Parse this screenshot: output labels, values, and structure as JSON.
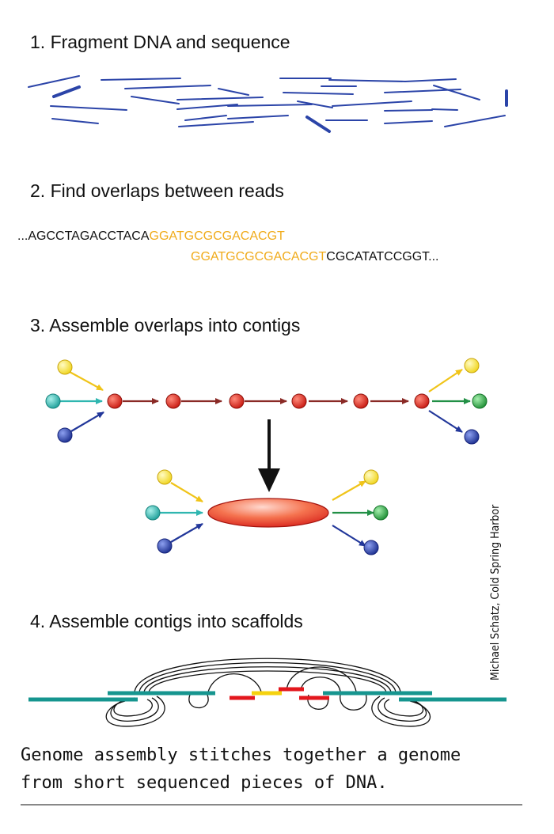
{
  "steps": {
    "fragment": {
      "title": "1. Fragment DNA and sequence"
    },
    "overlaps": {
      "title": "2. Find overlaps between reads",
      "read1_prefix": "...AGCCTAGACCTACA",
      "read1_overlap": "GGATGCGCGACACGT",
      "read2_overlap": "GGATGCGCGACACGT",
      "read2_suffix": "CGCATATCCGGT..."
    },
    "contigs": {
      "title": "3. Assemble overlaps into contigs"
    },
    "scaffolds": {
      "title": "4. Assemble contigs into scaffolds"
    }
  },
  "credit": "Michael Schatz, Cold Spring Harbor",
  "caption": {
    "line1": "Genome assembly stitches together a genome",
    "line2": "from short sequenced pieces of DNA."
  },
  "colors": {
    "read_blue": "#2b44a8",
    "overlap_orange": "#f0ab1b",
    "node_red": "#d8231c",
    "edge_dark_red": "#8a2a26",
    "yellow": "#f7e23a",
    "teal": "#2fb6b0",
    "navy": "#22379a",
    "green": "#2aa042",
    "scaffold_teal": "#16958f",
    "scaffold_red": "#e3171d",
    "scaffold_yellow": "#f5d20e"
  }
}
